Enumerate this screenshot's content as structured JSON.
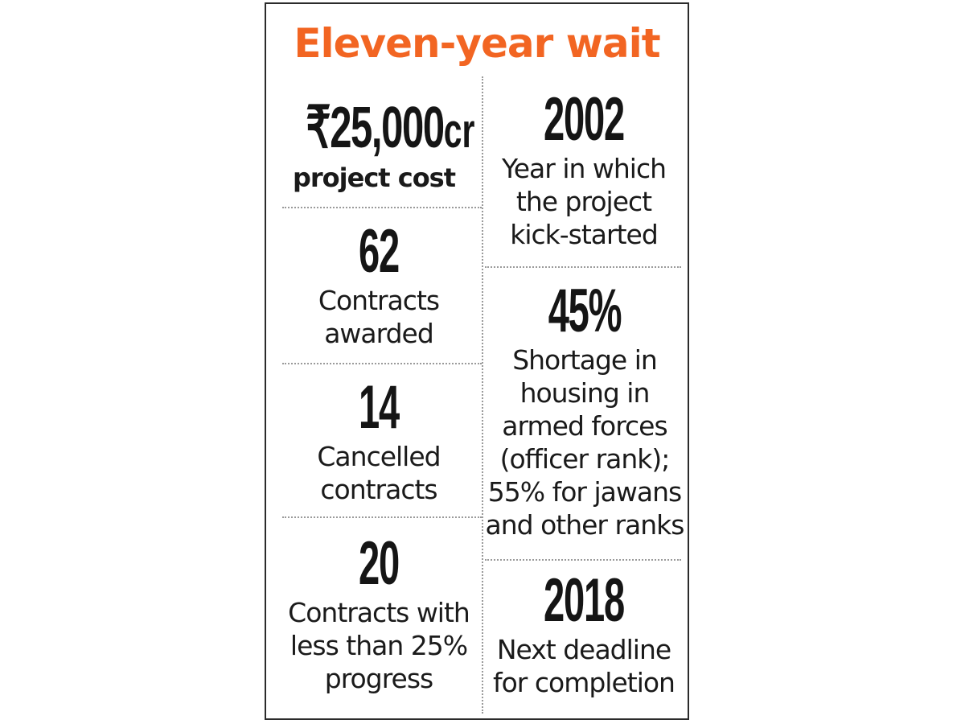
{
  "title": "Eleven-year wait",
  "left_column": [
    {
      "value": "₹25,000cr",
      "value_number": "₹25,000",
      "value_unit": "cr",
      "label": "project cost"
    },
    {
      "value": "62",
      "label": "Contracts awarded"
    },
    {
      "value": "14",
      "label": "Cancelled contracts"
    },
    {
      "value": "20",
      "label": "Contracts with less than 25% progress"
    }
  ],
  "right_column": [
    {
      "value": "2002",
      "label": "Year in which the project kick-started"
    },
    {
      "value": "45%",
      "label": "Shortage in housing in armed forces (officer rank); 55% for jawans and other ranks"
    },
    {
      "value": "2018",
      "label": "Next deadline for completion"
    }
  ],
  "colors": {
    "title": "#f26522",
    "text": "#1a1a1a",
    "border": "#2b2b2b",
    "divider": "#9a9a9a"
  }
}
